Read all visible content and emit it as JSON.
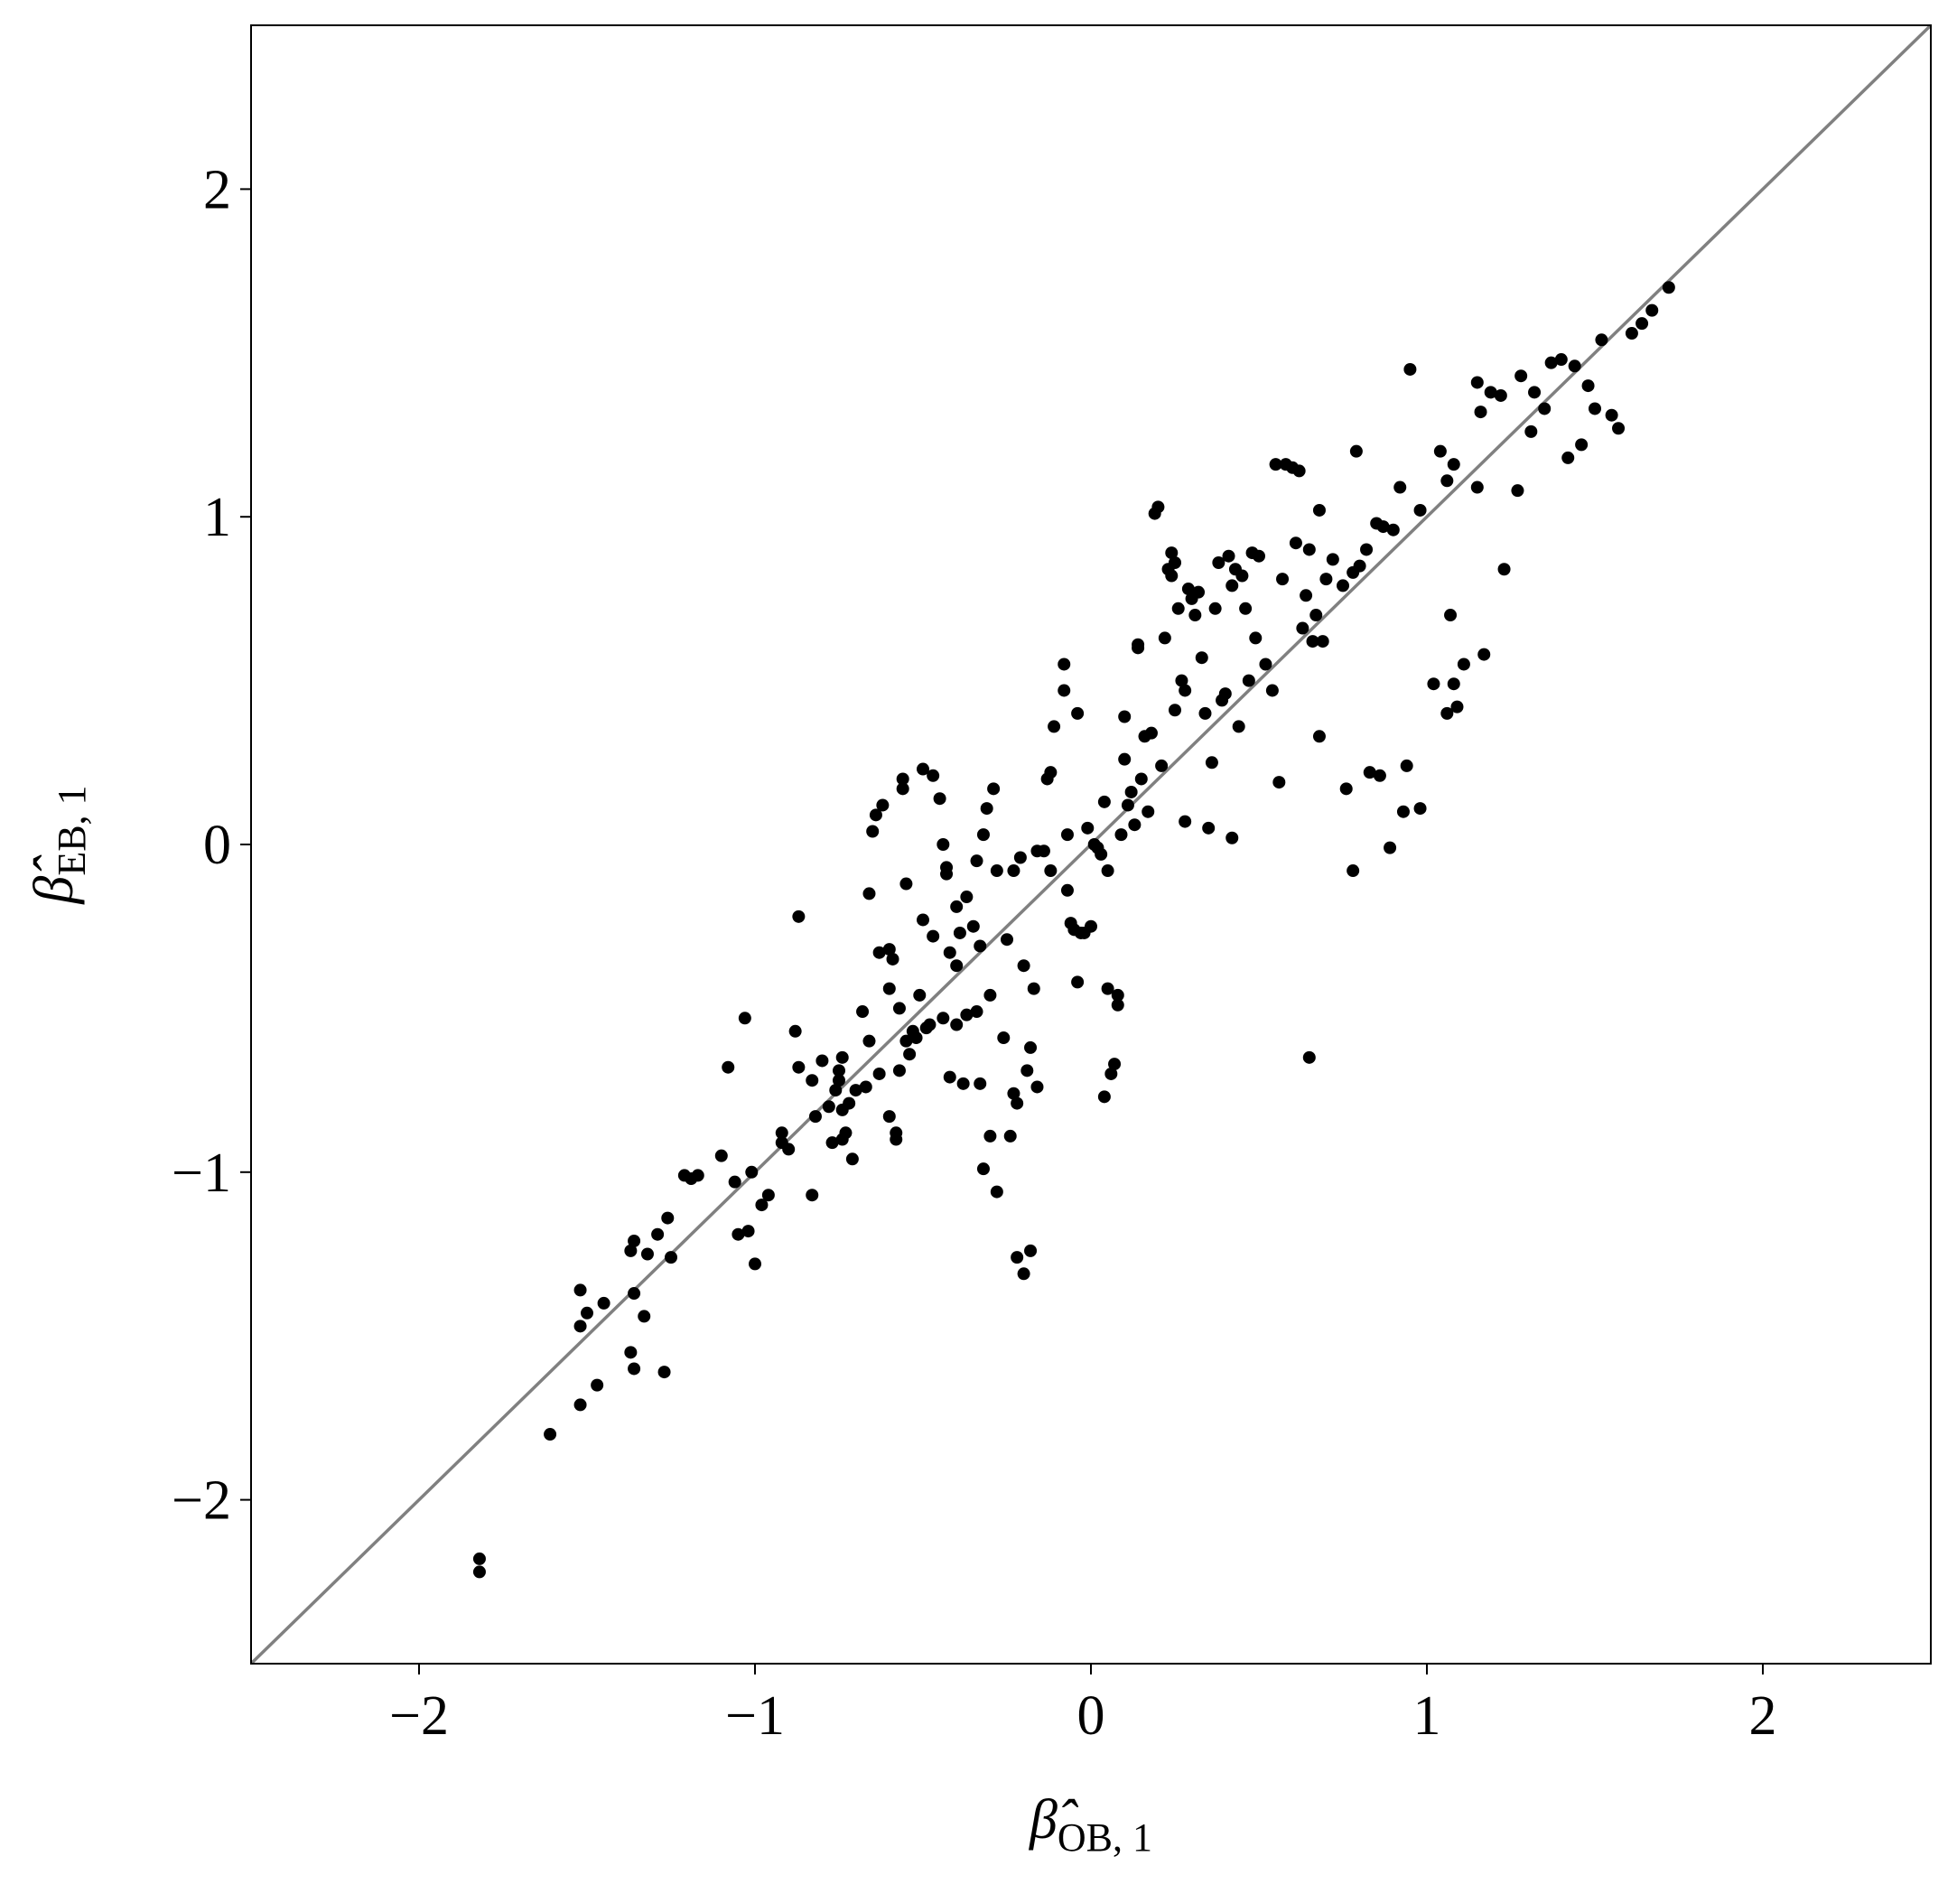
{
  "chart_data": {
    "type": "scatter",
    "xlabel": {
      "symbol": "β̂",
      "subscript": "OB, 1"
    },
    "ylabel": {
      "symbol": "β̂",
      "subscript": "EB, 1"
    },
    "xlim": [
      -2.5,
      2.5
    ],
    "ylim": [
      -2.5,
      2.5
    ],
    "xticks": [
      {
        "value": -2,
        "label": "−2"
      },
      {
        "value": -1,
        "label": "−1"
      },
      0,
      1,
      2
    ],
    "yticks": [
      {
        "value": -2,
        "label": "−2"
      },
      {
        "value": -1,
        "label": "−1"
      },
      0,
      1,
      2
    ],
    "color": "#000000",
    "diagonal_color": "#808080",
    "grid": false,
    "x": [
      -1.82,
      -1.82,
      -1.61,
      -1.52,
      -1.47,
      -1.52,
      -1.5,
      -1.52,
      -1.45,
      -1.37,
      -1.36,
      -1.33,
      -1.27,
      -1.36,
      -1.37,
      -1.36,
      -1.32,
      -1.29,
      -1.25,
      -1.26,
      -1.21,
      -1.19,
      -1.17,
      -1.1,
      -1.08,
      -1.06,
      -1.05,
      -1.02,
      -1.01,
      -1.0,
      -0.98,
      -0.96,
      -1.03,
      -0.92,
      -0.92,
      -0.9,
      -0.88,
      -0.87,
      -0.87,
      -0.83,
      -0.83,
      -0.82,
      -0.8,
      -0.78,
      -0.76,
      -0.77,
      -0.75,
      -0.74,
      -0.73,
      -0.71,
      -0.74,
      -0.75,
      -0.74,
      -0.72,
      -0.7,
      -0.68,
      -0.67,
      -0.66,
      -0.66,
      -0.65,
      -0.64,
      -0.62,
      -0.63,
      -0.63,
      -0.6,
      -0.6,
      -0.6,
      -0.59,
      -0.58,
      -0.58,
      -0.57,
      -0.57,
      -0.56,
      -0.56,
      -0.55,
      -0.55,
      -0.54,
      -0.53,
      -0.52,
      -0.51,
      -0.5,
      -0.49,
      -0.5,
      -0.48,
      -0.47,
      -0.47,
      -0.45,
      -0.44,
      -0.44,
      -0.43,
      -0.43,
      -0.42,
      -0.42,
      -0.4,
      -0.4,
      -0.4,
      -0.39,
      -0.38,
      -0.37,
      -0.37,
      -0.35,
      -0.34,
      -0.34,
      -0.33,
      -0.33,
      -0.32,
      -0.32,
      -0.31,
      -0.3,
      -0.3,
      -0.29,
      -0.28,
      -0.28,
      -0.26,
      -0.25,
      -0.24,
      -0.23,
      -0.23,
      -0.22,
      -0.22,
      -0.21,
      -0.2,
      -0.2,
      -0.19,
      -0.18,
      -0.18,
      -0.17,
      -0.16,
      -0.16,
      -0.14,
      -0.12,
      -0.13,
      -0.12,
      -0.11,
      -0.08,
      -0.08,
      -0.07,
      -0.07,
      -0.06,
      -0.04,
      -0.05,
      -0.04,
      -0.03,
      -0.02,
      -0.01,
      0.0,
      0.01,
      0.02,
      0.03,
      0.04,
      0.04,
      0.05,
      0.05,
      0.06,
      0.07,
      0.08,
      0.08,
      0.09,
      0.1,
      0.1,
      0.11,
      0.12,
      0.13,
      0.14,
      0.14,
      0.15,
      0.16,
      0.17,
      0.18,
      0.19,
      0.2,
      0.21,
      0.22,
      0.23,
      0.24,
      0.24,
      0.25,
      0.25,
      0.26,
      0.27,
      0.28,
      0.28,
      0.29,
      0.3,
      0.31,
      0.32,
      0.33,
      0.34,
      0.35,
      0.36,
      0.37,
      0.38,
      0.39,
      0.4,
      0.41,
      0.42,
      0.42,
      0.43,
      0.44,
      0.45,
      0.46,
      0.47,
      0.48,
      0.49,
      0.5,
      0.52,
      0.54,
      0.55,
      0.56,
      0.57,
      0.58,
      0.6,
      0.61,
      0.62,
      0.63,
      0.64,
      0.65,
      0.65,
      0.66,
      0.67,
      0.68,
      0.68,
      0.69,
      0.7,
      0.72,
      0.75,
      0.76,
      0.78,
      0.78,
      0.79,
      0.8,
      0.82,
      0.83,
      0.85,
      0.86,
      0.87,
      0.89,
      0.9,
      0.92,
      0.93,
      0.94,
      0.95,
      0.98,
      0.98,
      1.02,
      1.04,
      1.06,
      1.06,
      1.07,
      1.08,
      1.08,
      1.09,
      1.11,
      1.15,
      1.15,
      1.16,
      1.17,
      1.19,
      1.22,
      1.23,
      1.27,
      1.28,
      1.31,
      1.32,
      1.35,
      1.37,
      1.4,
      1.42,
      1.44,
      1.46,
      1.48,
      1.5,
      1.52,
      1.55,
      1.57,
      1.61,
      1.64,
      1.67,
      1.72
    ],
    "values": [
      -2.18,
      -2.22,
      -1.8,
      -1.71,
      -1.65,
      -1.47,
      -1.43,
      -1.36,
      -1.4,
      -1.55,
      -1.6,
      -1.44,
      -1.61,
      -1.37,
      -1.24,
      -1.21,
      -1.25,
      -1.19,
      -1.26,
      -1.14,
      -1.01,
      -1.02,
      -1.01,
      -0.95,
      -0.68,
      -1.03,
      -1.19,
      -1.18,
      -1.0,
      -1.28,
      -1.1,
      -1.07,
      -0.53,
      -0.88,
      -0.91,
      -0.93,
      -0.57,
      -0.68,
      -0.22,
      -0.72,
      -1.07,
      -0.83,
      -0.66,
      -0.8,
      -0.75,
      -0.91,
      -0.72,
      -0.9,
      -0.88,
      -0.96,
      -0.81,
      -0.69,
      -0.65,
      -0.79,
      -0.75,
      -0.51,
      -0.74,
      -0.6,
      -0.15,
      0.04,
      0.09,
      0.12,
      -0.33,
      -0.7,
      -0.44,
      -0.83,
      -0.32,
      -0.35,
      -0.88,
      -0.9,
      -0.69,
      -0.5,
      0.17,
      0.2,
      -0.12,
      -0.6,
      -0.64,
      -0.57,
      -0.59,
      -0.46,
      -0.23,
      -0.56,
      0.23,
      -0.55,
      0.21,
      -0.28,
      0.14,
      -0.53,
      0.0,
      -0.07,
      -0.09,
      -0.33,
      -0.71,
      -0.55,
      -0.37,
      -0.19,
      -0.27,
      -0.73,
      -0.52,
      -0.16,
      -0.25,
      -0.51,
      -0.05,
      -0.31,
      -0.73,
      -0.99,
      0.03,
      0.11,
      -0.89,
      -0.46,
      0.17,
      -1.06,
      -0.08,
      -0.59,
      -0.29,
      -0.89,
      -0.76,
      -0.08,
      -1.26,
      -0.79,
      -0.04,
      -0.37,
      -1.31,
      -0.69,
      -1.24,
      -0.62,
      -0.44,
      -0.74,
      -0.02,
      -0.02,
      -0.08,
      0.2,
      0.22,
      0.36,
      0.47,
      0.55,
      0.03,
      -0.14,
      -0.24,
      0.4,
      -0.26,
      -0.42,
      -0.27,
      -0.27,
      0.05,
      -0.25,
      0.0,
      -0.01,
      -0.03,
      0.13,
      -0.77,
      -0.44,
      -0.08,
      -0.7,
      -0.67,
      -0.46,
      -0.49,
      0.03,
      0.39,
      0.26,
      0.12,
      0.16,
      0.06,
      0.6,
      0.61,
      0.2,
      0.33,
      0.1,
      0.34,
      1.01,
      1.03,
      0.24,
      0.63,
      0.84,
      0.89,
      0.82,
      0.86,
      0.41,
      0.72,
      0.5,
      0.47,
      0.07,
      0.78,
      0.75,
      0.7,
      0.77,
      0.57,
      0.4,
      0.05,
      0.25,
      0.72,
      0.86,
      0.44,
      0.46,
      0.88,
      0.79,
      0.02,
      0.84,
      0.36,
      0.82,
      0.72,
      0.5,
      0.89,
      0.63,
      0.88,
      0.55,
      0.47,
      1.16,
      0.19,
      0.81,
      1.16,
      1.15,
      0.92,
      1.14,
      0.66,
      0.76,
      -0.65,
      0.9,
      0.62,
      0.7,
      1.02,
      0.33,
      0.62,
      0.81,
      0.87,
      0.79,
      0.17,
      0.83,
      -0.08,
      1.2,
      0.85,
      0.9,
      0.22,
      0.98,
      0.21,
      0.97,
      -0.01,
      0.96,
      1.09,
      0.1,
      0.24,
      1.45,
      0.11,
      1.02,
      0.49,
      1.2,
      1.11,
      0.4,
      0.7,
      1.16,
      0.49,
      0.42,
      0.55,
      1.09,
      1.41,
      1.32,
      0.58,
      1.38,
      1.37,
      0.84,
      1.08,
      1.43,
      1.26,
      1.38,
      1.33,
      1.47,
      1.48,
      1.18,
      1.46,
      1.22,
      1.4,
      1.33,
      1.54,
      1.31,
      1.27,
      1.56,
      1.59,
      1.63,
      1.7
    ]
  }
}
